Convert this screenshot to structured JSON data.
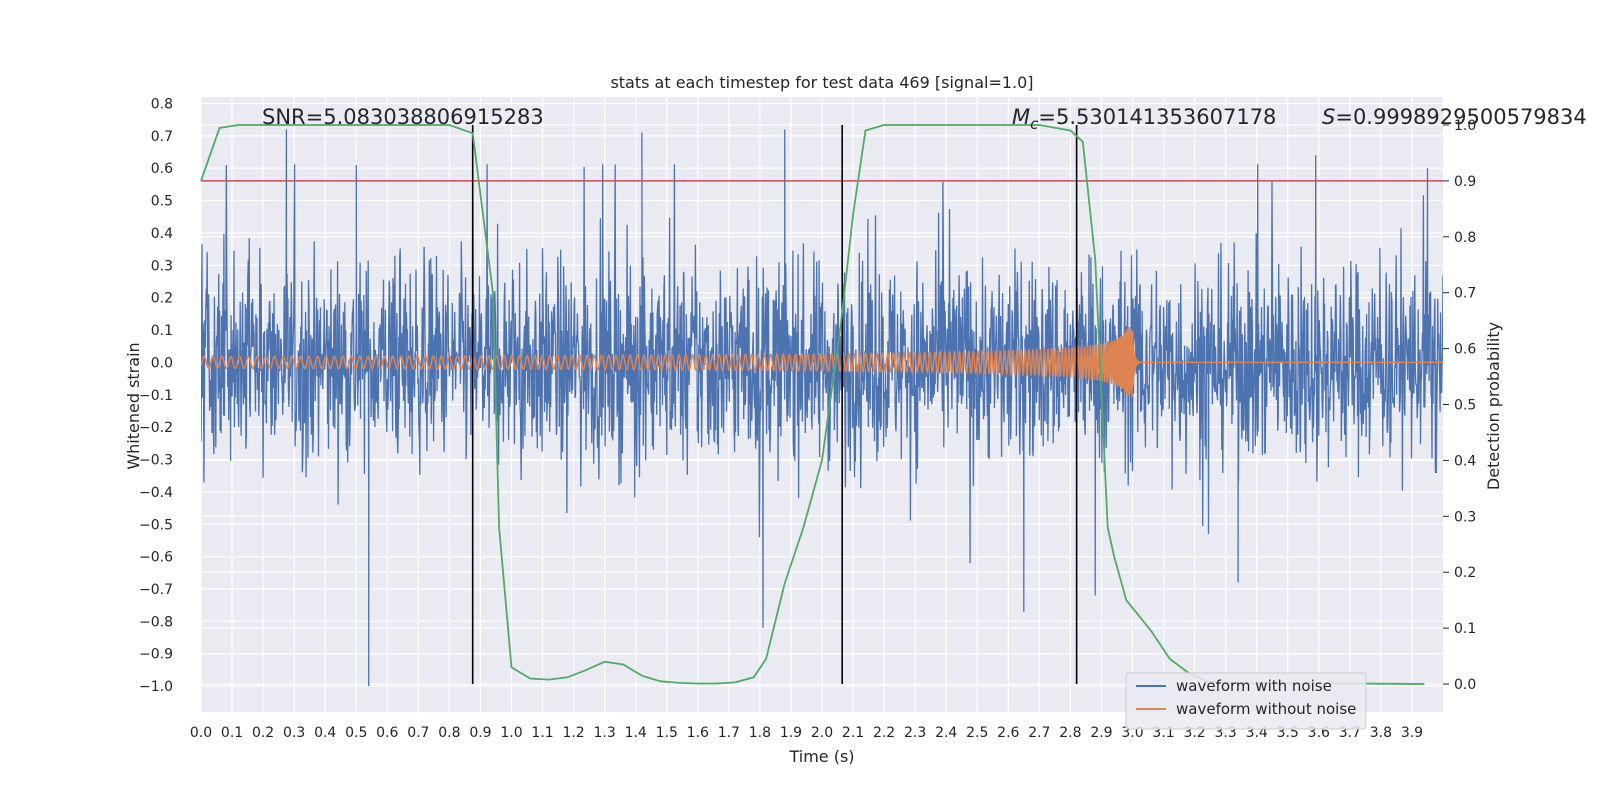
{
  "chart_data": {
    "type": "line",
    "title": "stats at each timestep for test data 469 [signal=1.0]",
    "xlabel": "Time (s)",
    "ylabel": "Whitened strain",
    "y2label": "Detection probability",
    "xlim": [
      0.0,
      4.0
    ],
    "ylim": [
      -1.08,
      0.82
    ],
    "y2lim": [
      -0.05,
      1.05
    ],
    "xticks": [
      0.0,
      0.1,
      0.2,
      0.3,
      0.4,
      0.5,
      0.6,
      0.7,
      0.8,
      0.9,
      1.0,
      1.1,
      1.2,
      1.3,
      1.4,
      1.5,
      1.6,
      1.7,
      1.8,
      1.9,
      2.0,
      2.1,
      2.2,
      2.3,
      2.4,
      2.5,
      2.6,
      2.7,
      2.8,
      2.9,
      3.0,
      3.1,
      3.2,
      3.3,
      3.4,
      3.5,
      3.6,
      3.7,
      3.8,
      3.9
    ],
    "yticks": [
      0.8,
      0.7,
      0.6,
      0.5,
      0.4,
      0.3,
      0.2,
      0.1,
      0.0,
      -0.1,
      -0.2,
      -0.3,
      -0.4,
      -0.5,
      -0.6,
      -0.7,
      -0.8,
      -0.9,
      -1.0
    ],
    "y2ticks": [
      1.0,
      0.9,
      0.8,
      0.7,
      0.6,
      0.5,
      0.4,
      0.3,
      0.2,
      0.1,
      0.0
    ],
    "annotations": {
      "snr": "SNR=5.083038806915283",
      "mc_symbol": "M",
      "mc_sub": "c",
      "mc_value": "=5.530141353607178",
      "s_symbol": "S",
      "s_value": "=0.9998929500579834"
    },
    "threshold": {
      "value": 0.9,
      "axis": "right",
      "color": "#c44e52"
    },
    "vlines": [
      0.875,
      2.065,
      2.82
    ],
    "series": [
      {
        "name": "waveform with noise",
        "color": "#4c72b0",
        "axis": "left",
        "kind": "noise",
        "envelope": {
          "typical_abs": 0.28,
          "peak_max": 0.72,
          "peak_min": -1.0
        },
        "notable_peaks": [
          {
            "x": 0.275,
            "y": 0.72
          },
          {
            "x": 0.54,
            "y": -1.0
          },
          {
            "x": 0.5,
            "y": 0.61
          },
          {
            "x": 1.42,
            "y": 0.71
          },
          {
            "x": 1.81,
            "y": -0.82
          },
          {
            "x": 1.88,
            "y": 0.72
          },
          {
            "x": 2.65,
            "y": -0.77
          },
          {
            "x": 2.88,
            "y": -0.72
          },
          {
            "x": 3.34,
            "y": -0.68
          },
          {
            "x": 3.59,
            "y": 0.64
          },
          {
            "x": 3.95,
            "y": 0.6
          }
        ]
      },
      {
        "name": "waveform without noise",
        "color": "#dd8452",
        "axis": "left",
        "kind": "chirp",
        "start_amp": 0.018,
        "merger_time": 3.0,
        "merger_amp": 0.11,
        "ringdown_end": 3.02
      },
      {
        "name": "detection probability",
        "color": "#55a868",
        "axis": "right",
        "points": [
          [
            0.0,
            0.9
          ],
          [
            0.06,
            0.995
          ],
          [
            0.12,
            1.0
          ],
          [
            0.2,
            1.0
          ],
          [
            0.3,
            1.0
          ],
          [
            0.4,
            1.0
          ],
          [
            0.5,
            1.0
          ],
          [
            0.6,
            1.0
          ],
          [
            0.7,
            1.0
          ],
          [
            0.8,
            1.0
          ],
          [
            0.875,
            0.985
          ],
          [
            0.94,
            0.7
          ],
          [
            0.96,
            0.28
          ],
          [
            1.0,
            0.03
          ],
          [
            1.06,
            0.01
          ],
          [
            1.12,
            0.008
          ],
          [
            1.18,
            0.012
          ],
          [
            1.24,
            0.025
          ],
          [
            1.3,
            0.04
          ],
          [
            1.36,
            0.035
          ],
          [
            1.42,
            0.015
          ],
          [
            1.48,
            0.005
          ],
          [
            1.54,
            0.002
          ],
          [
            1.6,
            0.001
          ],
          [
            1.66,
            0.001
          ],
          [
            1.72,
            0.003
          ],
          [
            1.78,
            0.012
          ],
          [
            1.82,
            0.045
          ],
          [
            1.88,
            0.18
          ],
          [
            1.94,
            0.28
          ],
          [
            2.0,
            0.4
          ],
          [
            2.06,
            0.64
          ],
          [
            2.1,
            0.84
          ],
          [
            2.14,
            0.99
          ],
          [
            2.2,
            1.0
          ],
          [
            2.3,
            1.0
          ],
          [
            2.4,
            1.0
          ],
          [
            2.5,
            1.0
          ],
          [
            2.6,
            1.0
          ],
          [
            2.7,
            1.0
          ],
          [
            2.8,
            0.99
          ],
          [
            2.84,
            0.97
          ],
          [
            2.88,
            0.76
          ],
          [
            2.92,
            0.28
          ],
          [
            2.94,
            0.23
          ],
          [
            2.98,
            0.15
          ],
          [
            3.06,
            0.095
          ],
          [
            3.12,
            0.045
          ],
          [
            3.18,
            0.02
          ],
          [
            3.24,
            0.005
          ],
          [
            3.3,
            0.002
          ],
          [
            3.5,
            0.001
          ],
          [
            3.7,
            0.001
          ],
          [
            3.94,
            0.0
          ]
        ]
      }
    ],
    "legend": {
      "placement": "lower-right",
      "entries": [
        "waveform with noise",
        "waveform without noise"
      ]
    },
    "grid": true,
    "colors": {
      "plot_bg": "#eaeaf2",
      "grid": "#ffffff",
      "vline": "#000000"
    }
  }
}
